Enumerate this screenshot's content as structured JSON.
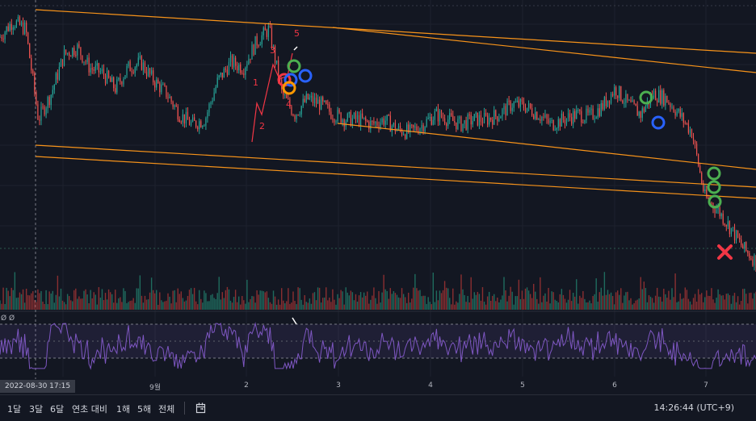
{
  "colors": {
    "background": "#131722",
    "up": "#26a69a",
    "down": "#ef5350",
    "channel": "#f7931a",
    "oscillator": "#7e57c2",
    "marker_green": "#4caf50",
    "marker_blue": "#2962ff",
    "marker_red": "#f23645",
    "marker_orange": "#ff9800",
    "wave_label": "#f23645"
  },
  "date_axis": {
    "ticks": [
      "9월",
      "2",
      "3",
      "4",
      "5",
      "6",
      "7"
    ],
    "cursor_label": "2022-08-30  17:15"
  },
  "wave_labels": [
    "1",
    "2",
    "3",
    "4",
    "5"
  ],
  "oscillator_label": "Ø Ø",
  "bottom": {
    "ranges": [
      "1달",
      "3달",
      "6달",
      "연초 대비",
      "1해",
      "5해",
      "전체"
    ],
    "goto_icon": "goto-date-icon",
    "clock": "14:26:44 (UTC+9)"
  },
  "markers": [
    {
      "type": "circle",
      "color": "green",
      "name": "green-circle-marker"
    },
    {
      "type": "circle",
      "color": "blue",
      "name": "blue-circle-marker"
    },
    {
      "type": "circle",
      "color": "red",
      "name": "red-circle-marker"
    },
    {
      "type": "circle",
      "color": "orange",
      "name": "orange-circle-marker"
    },
    {
      "type": "cross",
      "color": "red",
      "name": "red-x-marker"
    }
  ],
  "chart_data": {
    "type": "candlestick",
    "x_ticks": [
      "9월",
      "2",
      "3",
      "4",
      "5",
      "6",
      "7"
    ],
    "price_trend": [
      0.92,
      0.98,
      0.95,
      0.6,
      0.7,
      0.85,
      0.88,
      0.8,
      0.78,
      0.72,
      0.8,
      0.82,
      0.75,
      0.7,
      0.62,
      0.58,
      0.6,
      0.75,
      0.82,
      0.8,
      0.9,
      0.95,
      0.7,
      0.62,
      0.68,
      0.66,
      0.62,
      0.6,
      0.6,
      0.58,
      0.6,
      0.56,
      0.55,
      0.58,
      0.62,
      0.6,
      0.58,
      0.6,
      0.6,
      0.62,
      0.66,
      0.65,
      0.62,
      0.58,
      0.6,
      0.62,
      0.61,
      0.65,
      0.72,
      0.66,
      0.62,
      0.7,
      0.68,
      0.62,
      0.55,
      0.3,
      0.25,
      0.18,
      0.1,
      0.05
    ],
    "oscillator": {
      "upper_band": 0.7,
      "lower_band": 0.3
    }
  }
}
